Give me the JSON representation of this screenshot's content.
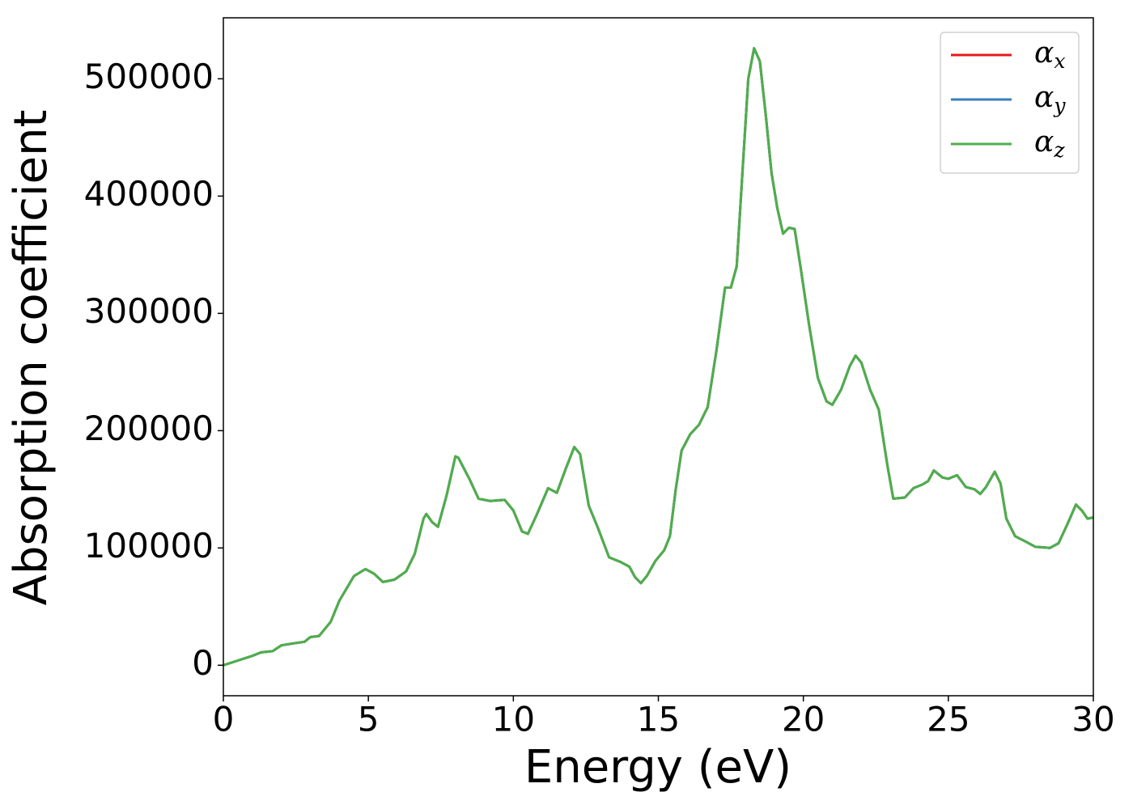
{
  "chart_data": {
    "type": "line",
    "xlabel": "Energy (eV)",
    "ylabel": "Absorption coefficient",
    "x": [
      0,
      0.5,
      1,
      1.3,
      1.7,
      2,
      2.5,
      2.8,
      3,
      3.3,
      3.7,
      4,
      4.5,
      4.9,
      5.2,
      5.5,
      5.9,
      6.3,
      6.6,
      6.9,
      7.0,
      7.2,
      7.4,
      7.7,
      8,
      8.1,
      8.5,
      8.8,
      9.2,
      9.7,
      10,
      10.3,
      10.5,
      10.8,
      11.2,
      11.5,
      11.8,
      12.1,
      12.3,
      12.6,
      12.9,
      13.3,
      13.7,
      14.0,
      14.2,
      14.4,
      14.6,
      14.9,
      15.2,
      15.4,
      15.6,
      15.8,
      16.1,
      16.4,
      16.7,
      17.0,
      17.3,
      17.5,
      17.7,
      17.9,
      18.1,
      18.3,
      18.5,
      18.7,
      18.9,
      19.1,
      19.3,
      19.5,
      19.7,
      19.9,
      20.2,
      20.5,
      20.8,
      21.0,
      21.3,
      21.6,
      21.8,
      22.0,
      22.3,
      22.6,
      22.9,
      23.1,
      23.5,
      23.8,
      24.1,
      24.3,
      24.5,
      24.8,
      25.0,
      25.3,
      25.6,
      25.9,
      26.1,
      26.3,
      26.6,
      26.8,
      27.0,
      27.3,
      27.7,
      28.0,
      28.5,
      28.8,
      29.1,
      29.4,
      29.6,
      29.8,
      30.0
    ],
    "series": [
      {
        "name": "αx",
        "color": "#e41a1c",
        "values": [
          0,
          4000,
          8000,
          11000,
          12000,
          17000,
          19000,
          20000,
          24000,
          25000,
          37000,
          55000,
          76000,
          82000,
          78000,
          71000,
          73000,
          80000,
          95000,
          125000,
          129000,
          122000,
          118000,
          145000,
          178000,
          177000,
          158000,
          142000,
          140000,
          141000,
          132000,
          114000,
          112000,
          128000,
          151000,
          147000,
          167000,
          186000,
          180000,
          136000,
          118000,
          92000,
          88000,
          84000,
          75000,
          70000,
          76000,
          89000,
          98000,
          110000,
          150000,
          183000,
          197000,
          205000,
          220000,
          268000,
          322000,
          322000,
          340000,
          420000,
          500000,
          526000,
          515000,
          470000,
          420000,
          390000,
          368000,
          373000,
          372000,
          340000,
          290000,
          245000,
          225000,
          222000,
          235000,
          255000,
          264000,
          258000,
          235000,
          218000,
          170000,
          142000,
          143000,
          151000,
          154000,
          157000,
          166000,
          160000,
          159000,
          162000,
          152000,
          150000,
          146000,
          152000,
          165000,
          155000,
          125000,
          110000,
          105000,
          101000,
          100000,
          104000,
          120000,
          137000,
          132000,
          125000,
          126000
        ]
      },
      {
        "name": "αy",
        "color": "#377eb8",
        "values": [
          0,
          4000,
          8000,
          11000,
          12000,
          17000,
          19000,
          20000,
          24000,
          25000,
          37000,
          55000,
          76000,
          82000,
          78000,
          71000,
          73000,
          80000,
          95000,
          125000,
          129000,
          122000,
          118000,
          145000,
          178000,
          177000,
          158000,
          142000,
          140000,
          141000,
          132000,
          114000,
          112000,
          128000,
          151000,
          147000,
          167000,
          186000,
          180000,
          136000,
          118000,
          92000,
          88000,
          84000,
          75000,
          70000,
          76000,
          89000,
          98000,
          110000,
          150000,
          183000,
          197000,
          205000,
          220000,
          268000,
          322000,
          322000,
          340000,
          420000,
          500000,
          526000,
          515000,
          470000,
          420000,
          390000,
          368000,
          373000,
          372000,
          340000,
          290000,
          245000,
          225000,
          222000,
          235000,
          255000,
          264000,
          258000,
          235000,
          218000,
          170000,
          142000,
          143000,
          151000,
          154000,
          157000,
          166000,
          160000,
          159000,
          162000,
          152000,
          150000,
          146000,
          152000,
          165000,
          155000,
          125000,
          110000,
          105000,
          101000,
          100000,
          104000,
          120000,
          137000,
          132000,
          125000,
          126000
        ]
      },
      {
        "name": "αz",
        "color": "#4daf4a",
        "values": [
          0,
          4000,
          8000,
          11000,
          12000,
          17000,
          19000,
          20000,
          24000,
          25000,
          37000,
          55000,
          76000,
          82000,
          78000,
          71000,
          73000,
          80000,
          95000,
          125000,
          129000,
          122000,
          118000,
          145000,
          178000,
          177000,
          158000,
          142000,
          140000,
          141000,
          132000,
          114000,
          112000,
          128000,
          151000,
          147000,
          167000,
          186000,
          180000,
          136000,
          118000,
          92000,
          88000,
          84000,
          75000,
          70000,
          76000,
          89000,
          98000,
          110000,
          150000,
          183000,
          197000,
          205000,
          220000,
          268000,
          322000,
          322000,
          340000,
          420000,
          500000,
          526000,
          515000,
          470000,
          420000,
          390000,
          368000,
          373000,
          372000,
          340000,
          290000,
          245000,
          225000,
          222000,
          235000,
          255000,
          264000,
          258000,
          235000,
          218000,
          170000,
          142000,
          143000,
          151000,
          154000,
          157000,
          166000,
          160000,
          159000,
          162000,
          152000,
          150000,
          146000,
          152000,
          165000,
          155000,
          125000,
          110000,
          105000,
          101000,
          100000,
          104000,
          120000,
          137000,
          132000,
          125000,
          126000
        ]
      }
    ],
    "xlim": [
      0,
      30
    ],
    "xticks": [
      0,
      5,
      10,
      15,
      20,
      25,
      30
    ],
    "ylim": [
      -26000,
      552000
    ],
    "yticks": [
      0,
      100000,
      200000,
      300000,
      400000,
      500000
    ],
    "legend": "upper right"
  }
}
